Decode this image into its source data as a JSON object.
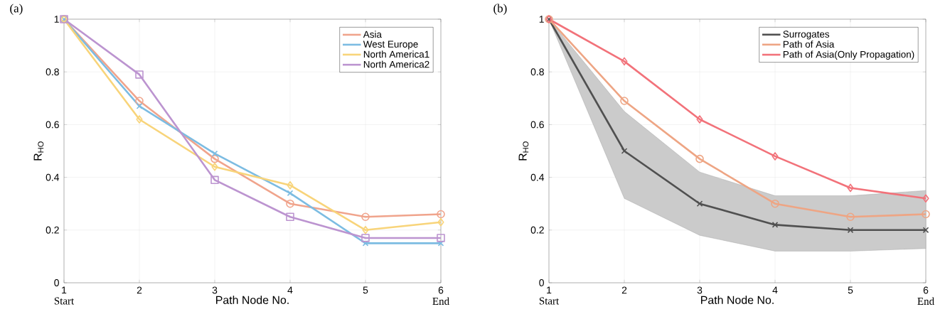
{
  "chart_data": [
    {
      "type": "line",
      "title": "(a)",
      "xlabel": "Path Node No.",
      "ylabel": "R$_{HO}$",
      "annotations": [
        "Start",
        "End"
      ],
      "x": [
        1,
        2,
        3,
        4,
        5,
        6
      ],
      "series": [
        {
          "name": "Asia",
          "color": "#f0a48c",
          "marker": "circle",
          "values": [
            1,
            0.69,
            0.47,
            0.3,
            0.25,
            0.26
          ]
        },
        {
          "name": "West Europe",
          "color": "#7cbce2",
          "marker": "cross",
          "values": [
            1,
            0.67,
            0.49,
            0.34,
            0.15,
            0.15
          ]
        },
        {
          "name": "North America1",
          "color": "#f8d47a",
          "marker": "diamond",
          "values": [
            1,
            0.62,
            0.44,
            0.37,
            0.2,
            0.23
          ]
        },
        {
          "name": "North America2",
          "color": "#bc94d0",
          "marker": "square",
          "values": [
            1,
            0.79,
            0.39,
            0.25,
            0.17,
            0.17
          ]
        }
      ],
      "xlim": [
        1,
        6
      ],
      "xticks": [
        1,
        2,
        3,
        4,
        5,
        6
      ],
      "ylim": [
        0,
        1
      ],
      "yticks": [
        0,
        0.2,
        0.4,
        0.6,
        0.8,
        1
      ],
      "grid": true,
      "legend": "top right"
    },
    {
      "type": "line",
      "title": "(b)",
      "xlabel": "Path Node No.",
      "ylabel": "R$_{HO}$",
      "annotations": [
        "Start",
        "End"
      ],
      "x": [
        1,
        2,
        3,
        4,
        5,
        6
      ],
      "series": [
        {
          "name": "Surrogates",
          "color": "#505050",
          "marker": "cross",
          "values": [
            1,
            0.5,
            0.3,
            0.22,
            0.2,
            0.2
          ],
          "lower": [
            1,
            0.32,
            0.18,
            0.12,
            0.12,
            0.13
          ],
          "upper": [
            1,
            0.65,
            0.42,
            0.33,
            0.33,
            0.35
          ]
        },
        {
          "name": "Path of Asia",
          "color": "#eea584",
          "marker": "circle",
          "values": [
            1,
            0.69,
            0.47,
            0.3,
            0.25,
            0.26
          ]
        },
        {
          "name": "Path of Asia(Only Propagation)",
          "color": "#f2727a",
          "marker": "diamond",
          "values": [
            1,
            0.84,
            0.62,
            0.48,
            0.36,
            0.32
          ]
        }
      ],
      "xlim": [
        1,
        6
      ],
      "xticks": [
        1,
        2,
        3,
        4,
        5,
        6
      ],
      "ylim": [
        0,
        1
      ],
      "yticks": [
        0,
        0.2,
        0.4,
        0.6,
        0.8,
        1
      ],
      "grid": true,
      "legend": "top right"
    }
  ]
}
